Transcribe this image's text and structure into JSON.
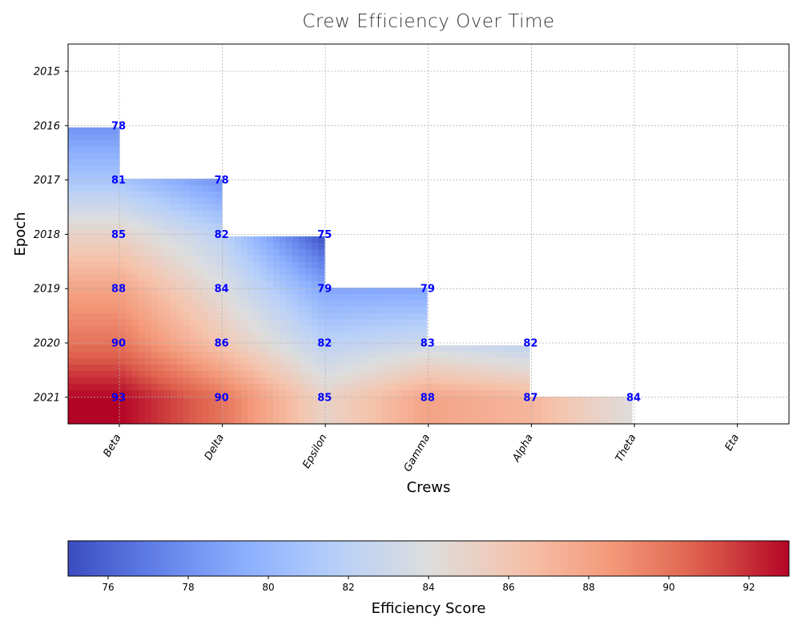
{
  "chart_data": {
    "type": "heatmap",
    "title": "Crew Efficiency Over Time",
    "xlabel": "Crews",
    "ylabel": "Epoch",
    "colorbar_label": "Efficiency Score",
    "x": [
      "Beta",
      "Delta",
      "Epsilon",
      "Gamma",
      "Alpha",
      "Theta",
      "Eta"
    ],
    "y": [
      "2015",
      "2016",
      "2017",
      "2018",
      "2019",
      "2020",
      "2021"
    ],
    "values": [
      [
        null,
        null,
        null,
        null,
        null,
        null,
        null
      ],
      [
        78,
        null,
        null,
        null,
        null,
        null,
        null
      ],
      [
        81,
        78,
        null,
        null,
        null,
        null,
        null
      ],
      [
        85,
        82,
        75,
        null,
        null,
        null,
        null
      ],
      [
        88,
        84,
        79,
        79,
        null,
        null,
        null
      ],
      [
        90,
        86,
        82,
        83,
        82,
        null,
        null
      ],
      [
        93,
        90,
        85,
        88,
        87,
        84,
        null
      ]
    ],
    "color_range": [
      75,
      93
    ],
    "colorbar_ticks": [
      76,
      78,
      80,
      82,
      84,
      86,
      88,
      90,
      92
    ],
    "colormap": "coolwarm",
    "grid": true,
    "colorbar_position": "bottom"
  }
}
